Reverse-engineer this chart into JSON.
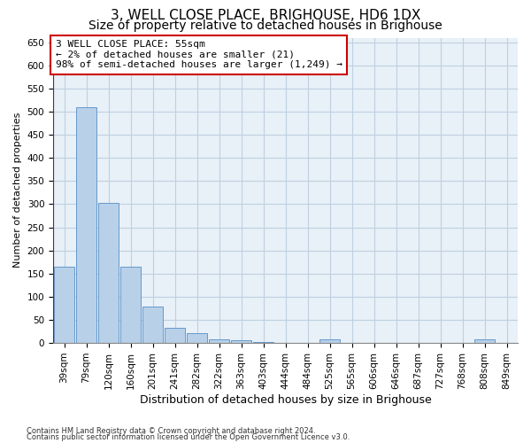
{
  "title": "3, WELL CLOSE PLACE, BRIGHOUSE, HD6 1DX",
  "subtitle": "Size of property relative to detached houses in Brighouse",
  "xlabel": "Distribution of detached houses by size in Brighouse",
  "ylabel": "Number of detached properties",
  "categories": [
    "39sqm",
    "79sqm",
    "120sqm",
    "160sqm",
    "201sqm",
    "241sqm",
    "282sqm",
    "322sqm",
    "363sqm",
    "403sqm",
    "444sqm",
    "484sqm",
    "525sqm",
    "565sqm",
    "606sqm",
    "646sqm",
    "687sqm",
    "727sqm",
    "768sqm",
    "808sqm",
    "849sqm"
  ],
  "values": [
    165,
    510,
    303,
    165,
    78,
    32,
    22,
    7,
    5,
    2,
    1,
    0,
    7,
    0,
    0,
    0,
    0,
    0,
    0,
    7,
    0
  ],
  "bar_color": "#b8d0e8",
  "bar_edgecolor": "#6699cc",
  "ylim": [
    0,
    660
  ],
  "yticks": [
    0,
    50,
    100,
    150,
    200,
    250,
    300,
    350,
    400,
    450,
    500,
    550,
    600,
    650
  ],
  "annotation_box_text": "3 WELL CLOSE PLACE: 55sqm\n← 2% of detached houses are smaller (21)\n98% of semi-detached houses are larger (1,249) →",
  "vline_color": "#cc0000",
  "box_edgecolor": "#cc0000",
  "background_color": "#ffffff",
  "grid_color": "#c0d0e0",
  "title_fontsize": 11,
  "subtitle_fontsize": 10,
  "xlabel_fontsize": 9,
  "ylabel_fontsize": 8,
  "tick_fontsize": 7.5,
  "annotation_fontsize": 8,
  "footnote1": "Contains HM Land Registry data © Crown copyright and database right 2024.",
  "footnote2": "Contains public sector information licensed under the Open Government Licence v3.0."
}
